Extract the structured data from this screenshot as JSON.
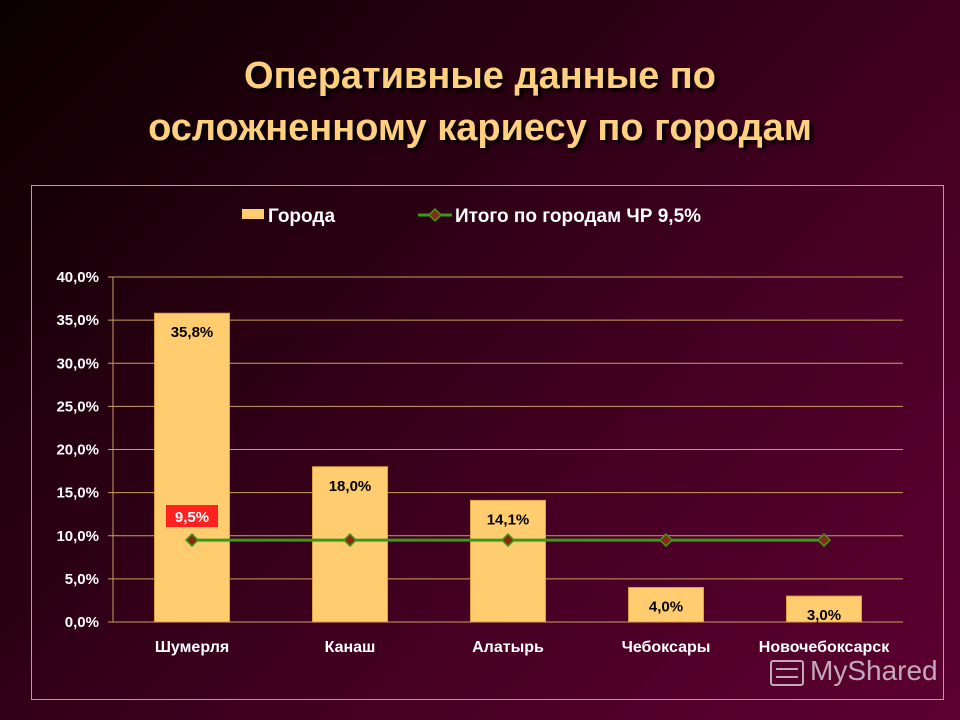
{
  "title": {
    "line1": "Оперативные данные по",
    "line2": "осложненному кариесу по городам"
  },
  "watermark": "MyShared",
  "chart_data": {
    "type": "bar",
    "categories": [
      "Шумерля",
      "Канаш",
      "Алатырь",
      "Чебоксары",
      "Новочебоксарск"
    ],
    "series": [
      {
        "name": "Города",
        "type": "bar",
        "values": [
          35.8,
          18.0,
          14.1,
          4.0,
          3.0
        ],
        "labels": [
          "35,8%",
          "18,0%",
          "14,1%",
          "4,0%",
          "3,0%"
        ],
        "color": "#ffcc70"
      },
      {
        "name": "Итого по городам ЧР 9,5%",
        "type": "line",
        "values": [
          9.5,
          9.5,
          9.5,
          9.5,
          9.5
        ],
        "labels": [
          "9,5%"
        ],
        "color": "#3a9a1a",
        "marker_color": "#8b2a10"
      }
    ],
    "ylim": [
      0,
      40
    ],
    "yticks": [
      "0,0%",
      "5,0%",
      "10,0%",
      "15,0%",
      "20,0%",
      "25,0%",
      "30,0%",
      "35,0%",
      "40,0%"
    ],
    "grid": true,
    "legend": "top",
    "colors": {
      "gridline": "#c9a060",
      "text": "#ffffff",
      "label_box": "#ff2020"
    }
  }
}
